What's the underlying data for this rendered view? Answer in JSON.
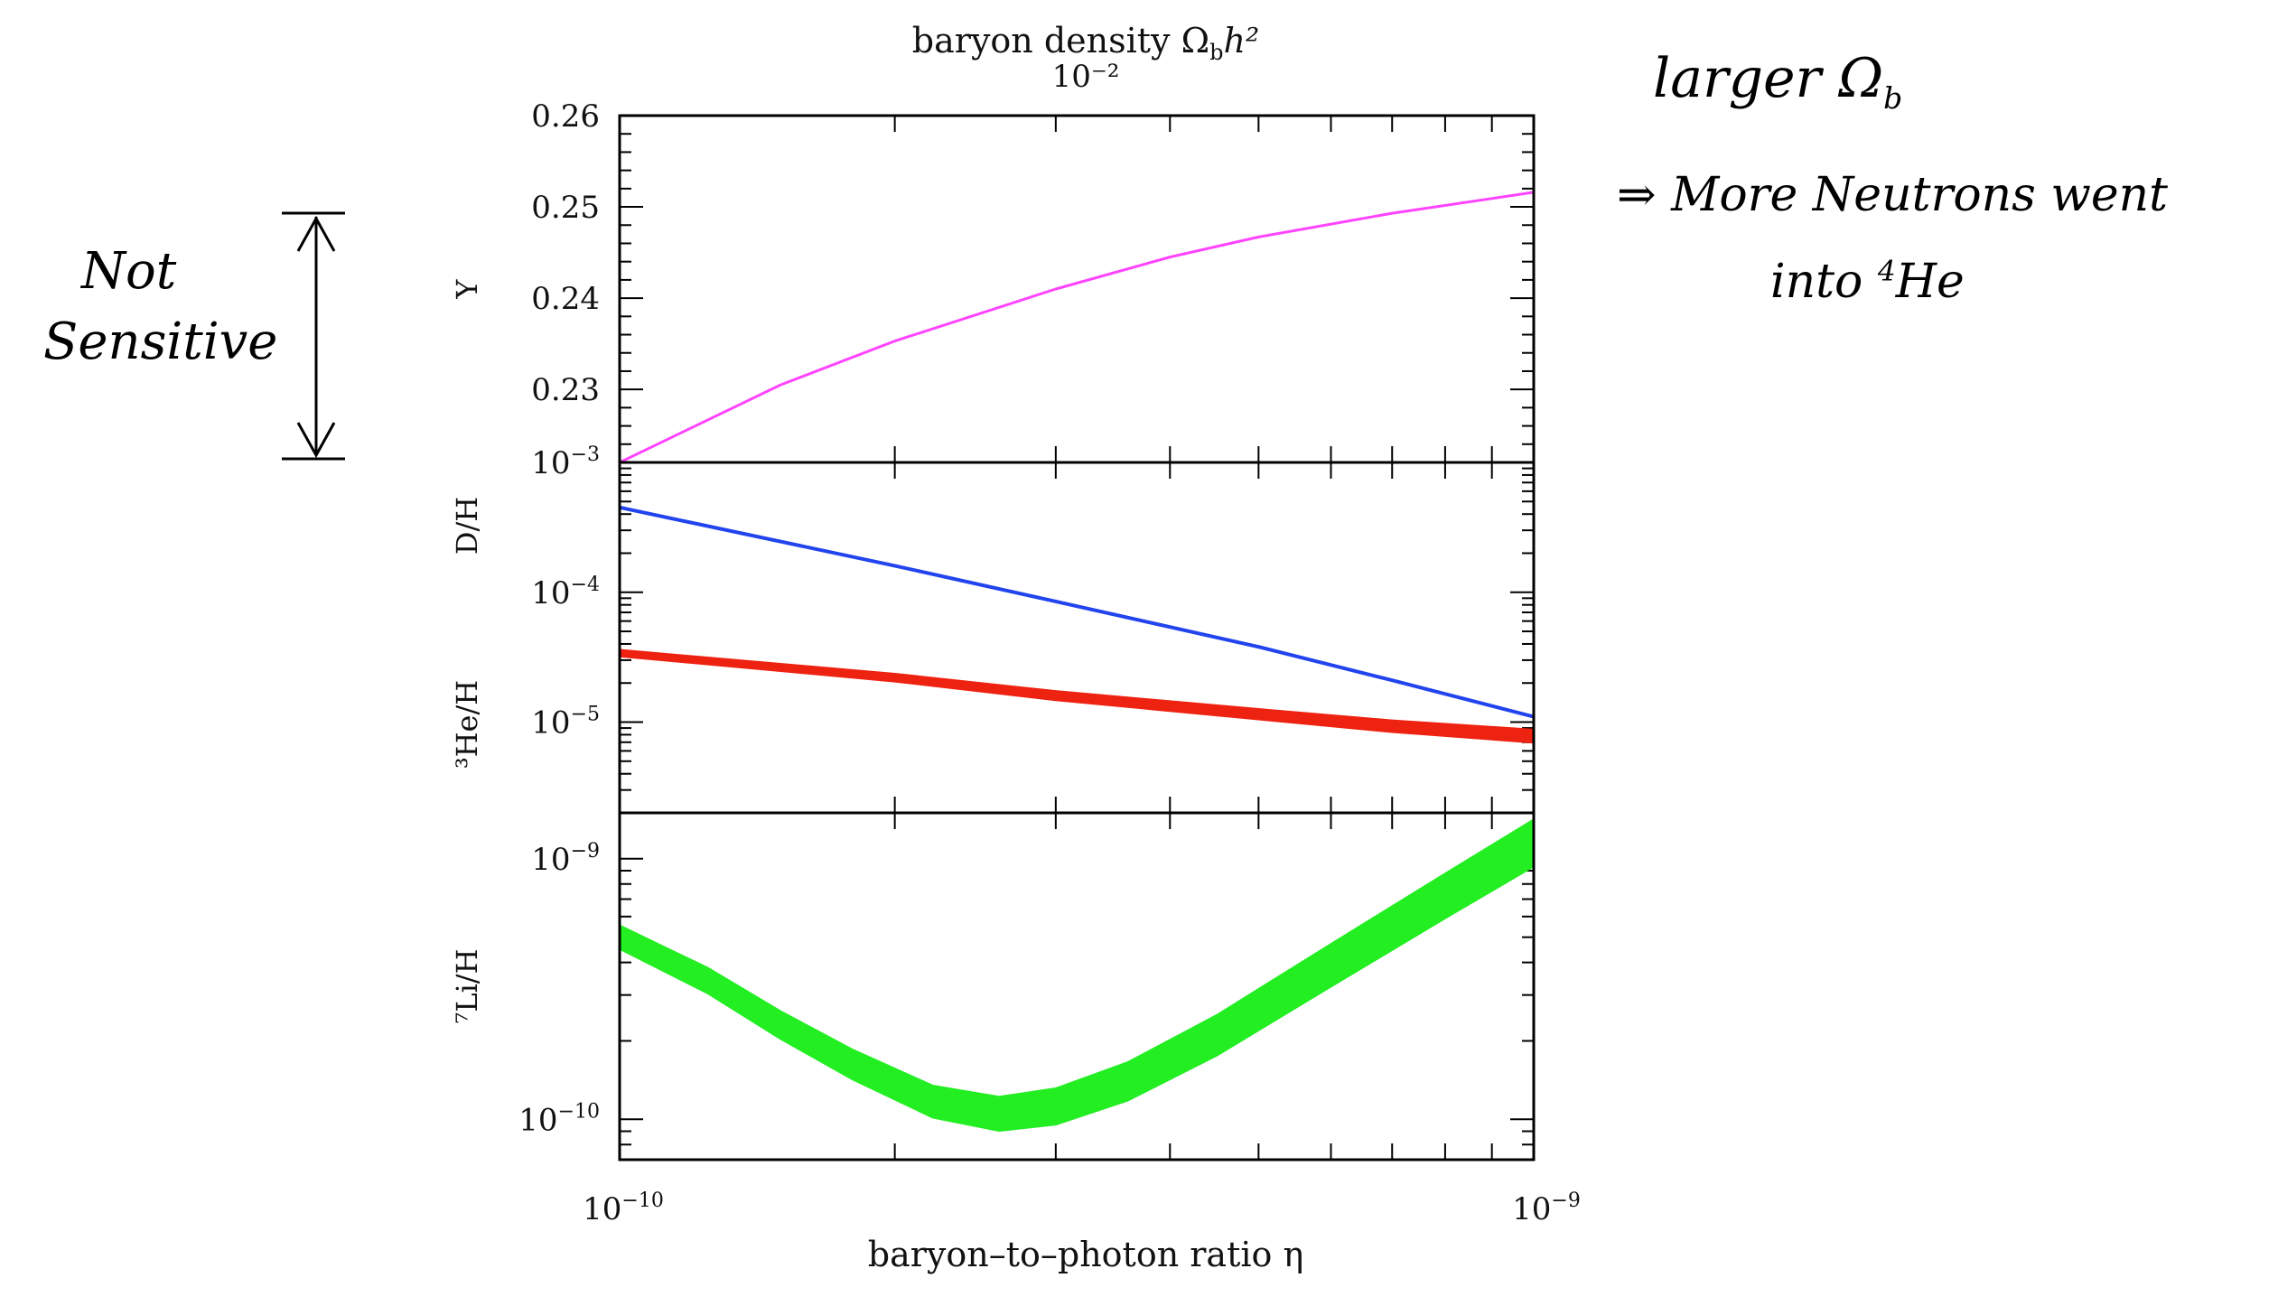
{
  "chart_data": {
    "type": "line",
    "top_axis": {
      "title": "baryon density Ω",
      "title_sub": "b",
      "title_tail": "h²",
      "tick_label": "10⁻²"
    },
    "x_axis": {
      "title": "baryon–to–photon ratio  η",
      "scale": "log",
      "range": [
        1e-10,
        1e-09
      ],
      "tick_labels": [
        {
          "base": "10",
          "exp": "−10",
          "value": 1e-10
        },
        {
          "base": "10",
          "exp": "−9",
          "value": 1e-09
        }
      ]
    },
    "panels": [
      {
        "id": "Y",
        "ylabel": "Y",
        "scale": "linear",
        "ylim": [
          0.222,
          0.26
        ],
        "tick_labels": [
          "0.23",
          "0.24",
          "0.25",
          "0.26"
        ],
        "tick_values": [
          0.23,
          0.24,
          0.25,
          0.26
        ],
        "series": [
          {
            "color": "#ff44ff",
            "width": 3,
            "x": [
              1e-10,
              1.5e-10,
              2e-10,
              3e-10,
              4e-10,
              5e-10,
              7e-10,
              1e-09
            ],
            "y": [
              0.222,
              0.2305,
              0.2353,
              0.241,
              0.2445,
              0.2467,
              0.2493,
              0.2516
            ]
          }
        ]
      },
      {
        "id": "DHe",
        "ylabel": "D/H",
        "ylabel2": "³He/H",
        "scale": "log",
        "ylim": [
          2e-06,
          0.001
        ],
        "tick_labels": [
          {
            "base": "10",
            "exp": "−3",
            "value": 0.001
          },
          {
            "base": "10",
            "exp": "−4",
            "value": 0.0001
          },
          {
            "base": "10",
            "exp": "−5",
            "value": 1e-05
          }
        ],
        "series": [
          {
            "color": "#2244ee",
            "width": 4,
            "band": 0,
            "x": [
              1e-10,
              2e-10,
              3e-10,
              5e-10,
              7e-10,
              1e-09
            ],
            "y": [
              0.00045,
              0.00016,
              8.5e-05,
              3.8e-05,
              2.1e-05,
              1.1e-05
            ]
          },
          {
            "color": "#ee2211",
            "width": 4,
            "band": 0.05,
            "x": [
              1e-10,
              2e-10,
              3e-10,
              5e-10,
              7e-10,
              1e-09
            ],
            "y": [
              3.4e-05,
              2.2e-05,
              1.6e-05,
              1.15e-05,
              9.3e-06,
              7.8e-06
            ]
          }
        ]
      },
      {
        "id": "Li",
        "ylabel": "⁷Li/H",
        "scale": "log",
        "ylim": [
          7e-11,
          1.5e-09
        ],
        "tick_labels": [
          {
            "base": "10",
            "exp": "−9",
            "value": 1e-09
          },
          {
            "base": "10",
            "exp": "−10",
            "value": 1e-10
          }
        ],
        "series": [
          {
            "color": "#22ee22",
            "width": 2,
            "band": 0.09,
            "x": [
              1e-10,
              1.25e-10,
              1.5e-10,
              1.8e-10,
              2.2e-10,
              2.6e-10,
              3e-10,
              3.6e-10,
              4.5e-10,
              6e-10,
              8e-10,
              1e-09
            ],
            "y": [
              5e-10,
              3.4e-10,
              2.3e-10,
              1.62e-10,
              1.17e-10,
              1.05e-10,
              1.12e-10,
              1.4e-10,
              2.1e-10,
              3.9e-10,
              7.2e-10,
              1.15e-09
            ]
          }
        ]
      }
    ]
  },
  "annotations": {
    "left_note": [
      "Not",
      "Sensitive"
    ],
    "right_title": "larger Ω",
    "right_title_sub": "b",
    "right_line1": "⇒  More Neutrons went",
    "right_line2_a": "into ",
    "right_line2_sup": "4",
    "right_line2_b": "He"
  }
}
